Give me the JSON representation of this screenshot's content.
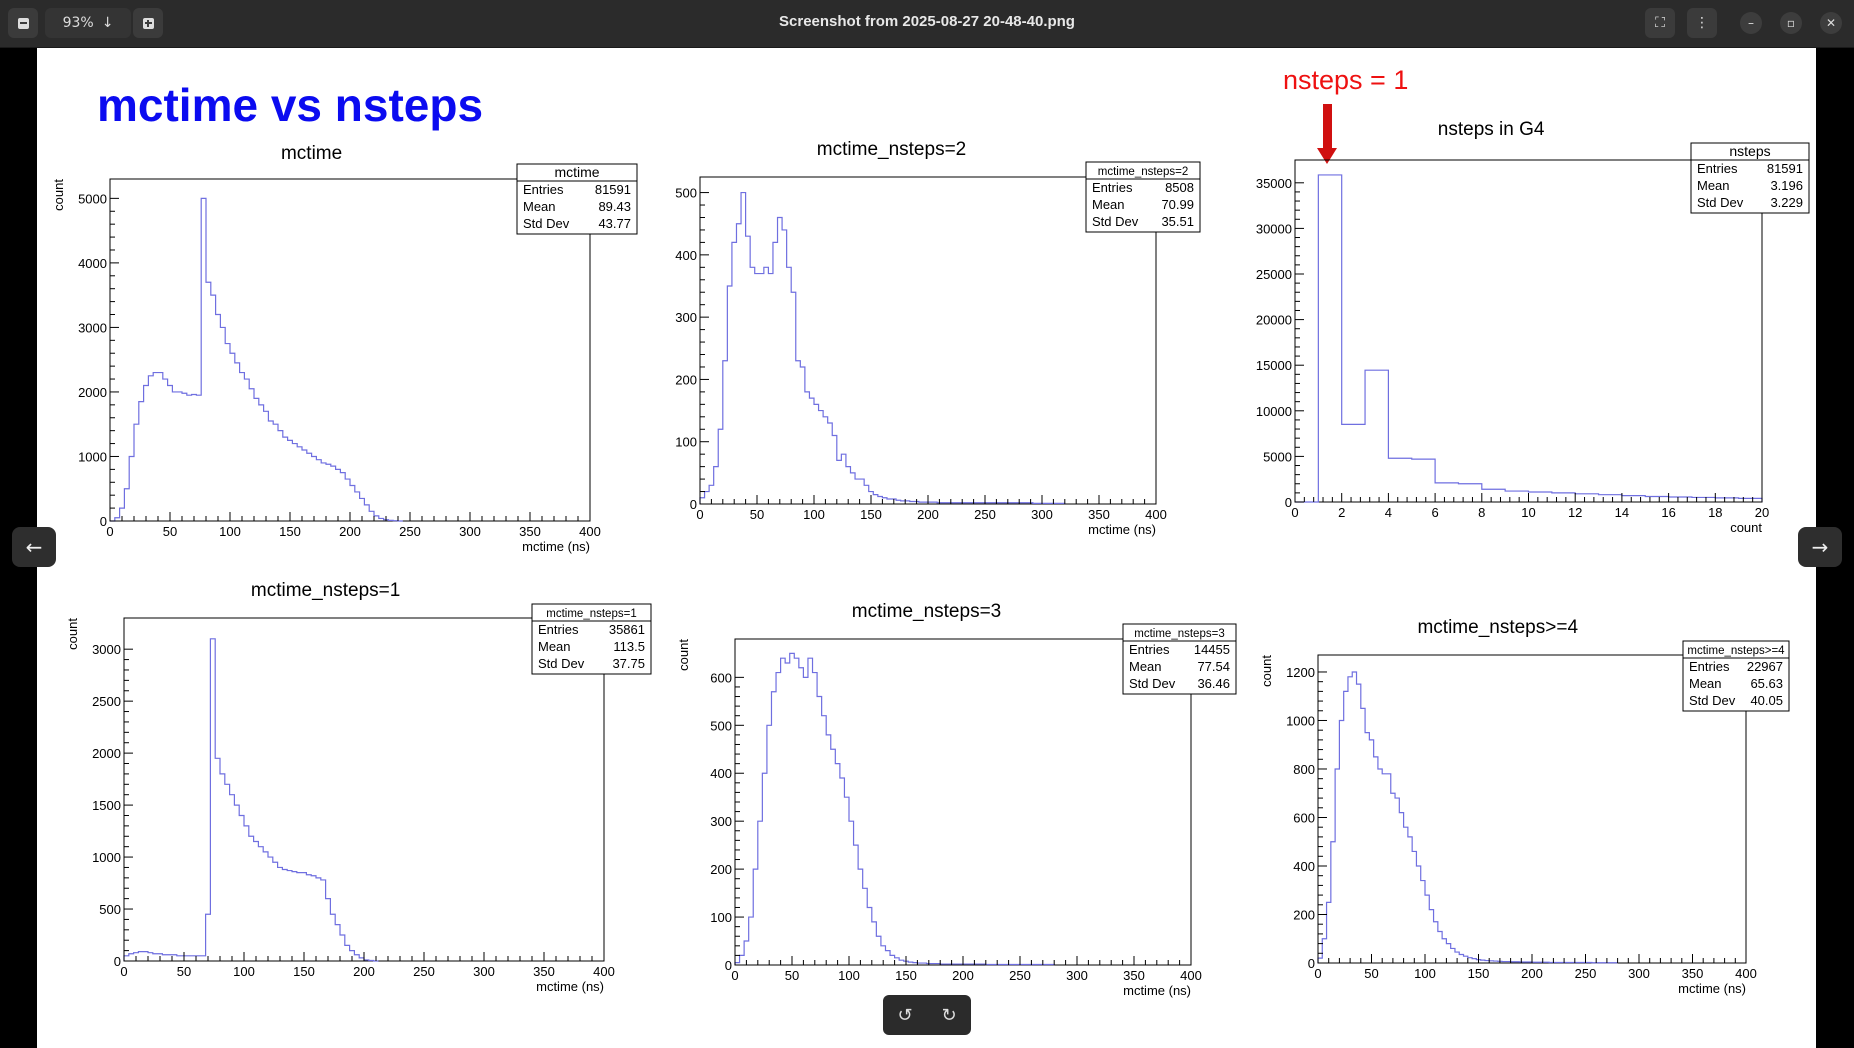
{
  "window": {
    "title": "Screenshot from 2025-08-27 20-48-40.png",
    "zoom_level": "93%",
    "zoom_out_icon": "minus-icon",
    "zoom_in_icon": "plus-icon",
    "zoom_menu_icon": "arrow-down-icon",
    "fullscreen_icon": "fullscreen-icon",
    "menu_icon": "kebab-menu-icon",
    "minimize_icon": "minimize-icon",
    "maximize_icon": "maximize-icon",
    "close_icon": "close-icon",
    "prev_icon": "arrow-left-icon",
    "next_icon": "arrow-right-icon",
    "rotate_left_icon": "rotate-left-icon",
    "rotate_right_icon": "rotate-right-icon"
  },
  "slide": {
    "title": "mctime vs nsteps",
    "annotation": "nsteps = 1",
    "title_color": "#0b0bf0",
    "annotation_color": "#ee1111"
  },
  "chart_data": [
    {
      "type": "histogram",
      "title": "mctime",
      "xlabel": "mctime (ns)",
      "ylabel": "count",
      "xlim": [
        0,
        400
      ],
      "ylim": [
        0,
        5300
      ],
      "xticks": [
        0,
        50,
        100,
        150,
        200,
        250,
        300,
        350,
        400
      ],
      "yticks": [
        0,
        1000,
        2000,
        3000,
        4000,
        5000
      ],
      "bin_width": 4,
      "counts": [
        0,
        50,
        200,
        500,
        1000,
        1500,
        1850,
        2100,
        2250,
        2300,
        2300,
        2200,
        2100,
        2000,
        2000,
        1980,
        1950,
        1960,
        1950,
        5000,
        3700,
        3500,
        3200,
        3000,
        2750,
        2600,
        2450,
        2300,
        2200,
        2050,
        1900,
        1800,
        1700,
        1550,
        1500,
        1400,
        1300,
        1250,
        1200,
        1150,
        1100,
        1050,
        1000,
        950,
        900,
        880,
        850,
        800,
        750,
        650,
        550,
        450,
        350,
        250,
        150,
        80,
        40,
        20,
        10,
        5,
        0
      ],
      "stats": {
        "name": "mctime",
        "entries": "81591",
        "mean": "89.43",
        "std_dev": "43.77"
      }
    },
    {
      "type": "histogram",
      "title": "mctime_nsteps=2",
      "xlabel": "mctime (ns)",
      "ylabel": "",
      "xlim": [
        0,
        400
      ],
      "ylim": [
        0,
        525
      ],
      "xticks": [
        0,
        50,
        100,
        150,
        200,
        250,
        300,
        350,
        400
      ],
      "yticks": [
        0,
        100,
        200,
        300,
        400,
        500
      ],
      "bin_width": 4,
      "counts": [
        10,
        20,
        30,
        60,
        120,
        230,
        350,
        420,
        450,
        500,
        430,
        380,
        370,
        370,
        380,
        370,
        420,
        460,
        440,
        380,
        340,
        230,
        220,
        180,
        170,
        160,
        150,
        140,
        130,
        110,
        70,
        80,
        60,
        50,
        40,
        40,
        30,
        20,
        15,
        12,
        10,
        8,
        8,
        6,
        5,
        5,
        4,
        4,
        3,
        3,
        3,
        3,
        2,
        2,
        2,
        2,
        2,
        2,
        2,
        2,
        2,
        2,
        2,
        2,
        2,
        2,
        2,
        2,
        2,
        2,
        2,
        2,
        2,
        1,
        1,
        1,
        1,
        1,
        1,
        1
      ],
      "stats": {
        "name": "mctime_nsteps=2",
        "entries": "8508",
        "mean": "70.99",
        "std_dev": "35.51"
      }
    },
    {
      "type": "histogram",
      "title": "nsteps in G4",
      "xlabel": "count",
      "ylabel": "",
      "xlim": [
        0,
        20
      ],
      "ylim": [
        0,
        37500
      ],
      "xticks": [
        0,
        2,
        4,
        6,
        8,
        10,
        12,
        14,
        16,
        18,
        20
      ],
      "yticks": [
        0,
        5000,
        10000,
        15000,
        20000,
        25000,
        30000,
        35000
      ],
      "bin_width": 1,
      "counts": [
        0,
        35861,
        8508,
        14455,
        4800,
        4700,
        2100,
        2000,
        1400,
        1200,
        1100,
        1000,
        900,
        800,
        700,
        600,
        550,
        500,
        450,
        400
      ],
      "stats": {
        "name": "nsteps",
        "entries": "81591",
        "mean": "3.196",
        "std_dev": "3.229"
      }
    },
    {
      "type": "histogram",
      "title": "mctime_nsteps=1",
      "xlabel": "mctime (ns)",
      "ylabel": "count",
      "xlim": [
        0,
        400
      ],
      "ylim": [
        0,
        3300
      ],
      "xticks": [
        0,
        50,
        100,
        150,
        200,
        250,
        300,
        350,
        400
      ],
      "yticks": [
        0,
        500,
        1000,
        1500,
        2000,
        2500,
        3000
      ],
      "bin_width": 4,
      "counts": [
        50,
        70,
        80,
        90,
        90,
        80,
        70,
        70,
        60,
        60,
        60,
        50,
        50,
        50,
        50,
        50,
        50,
        450,
        3100,
        1950,
        1800,
        1700,
        1600,
        1500,
        1400,
        1300,
        1200,
        1150,
        1100,
        1050,
        1000,
        950,
        900,
        880,
        870,
        860,
        850,
        850,
        830,
        820,
        800,
        780,
        600,
        450,
        350,
        250,
        150,
        100,
        60,
        30,
        10,
        5,
        0
      ],
      "stats": {
        "name": "mctime_nsteps=1",
        "entries": "35861",
        "mean": "113.5",
        "std_dev": "37.75"
      }
    },
    {
      "type": "histogram",
      "title": "mctime_nsteps=3",
      "xlabel": "mctime (ns)",
      "ylabel": "count",
      "xlim": [
        0,
        400
      ],
      "ylim": [
        0,
        680
      ],
      "xticks": [
        0,
        50,
        100,
        150,
        200,
        250,
        300,
        350,
        400
      ],
      "yticks": [
        0,
        100,
        200,
        300,
        400,
        500,
        600
      ],
      "bin_width": 4,
      "counts": [
        5,
        20,
        50,
        100,
        200,
        300,
        400,
        500,
        570,
        610,
        640,
        630,
        650,
        640,
        620,
        600,
        640,
        610,
        560,
        520,
        480,
        450,
        420,
        390,
        350,
        300,
        250,
        200,
        160,
        120,
        90,
        60,
        40,
        30,
        20,
        15,
        10,
        8,
        6,
        5,
        4,
        4,
        3,
        3,
        3,
        2,
        2,
        2,
        2,
        2,
        2,
        2,
        2,
        2,
        2,
        1,
        1,
        1,
        1,
        1,
        1,
        1,
        1,
        1,
        1,
        1,
        1,
        1,
        1,
        1
      ],
      "stats": {
        "name": "mctime_nsteps=3",
        "entries": "14455",
        "mean": "77.54",
        "std_dev": "36.46"
      }
    },
    {
      "type": "histogram",
      "title": "mctime_nsteps>=4",
      "xlabel": "mctime (ns)",
      "ylabel": "count",
      "xlim": [
        0,
        400
      ],
      "ylim": [
        0,
        1270
      ],
      "xticks": [
        0,
        50,
        100,
        150,
        200,
        250,
        300,
        350,
        400
      ],
      "yticks": [
        0,
        200,
        400,
        600,
        800,
        1000,
        1200
      ],
      "bin_width": 4,
      "counts": [
        20,
        100,
        250,
        500,
        800,
        1000,
        1120,
        1180,
        1200,
        1150,
        1050,
        950,
        920,
        850,
        800,
        780,
        780,
        700,
        680,
        620,
        560,
        520,
        460,
        400,
        340,
        280,
        220,
        170,
        130,
        100,
        80,
        60,
        45,
        35,
        28,
        22,
        18,
        14,
        12,
        10,
        9,
        8,
        7,
        6,
        6,
        5,
        5,
        4,
        4,
        4,
        3,
        3,
        3,
        3,
        2,
        2,
        2,
        2,
        2,
        2,
        2,
        2,
        2,
        2,
        1,
        1,
        1,
        1,
        1,
        1
      ],
      "stats": {
        "name": "mctime_nsteps>=4",
        "entries": "22967",
        "mean": "65.63",
        "std_dev": "40.05"
      }
    }
  ],
  "stats_labels": {
    "entries": "Entries",
    "mean": "Mean",
    "std_dev": "Std Dev"
  },
  "hist_color": "#6f6fe0"
}
